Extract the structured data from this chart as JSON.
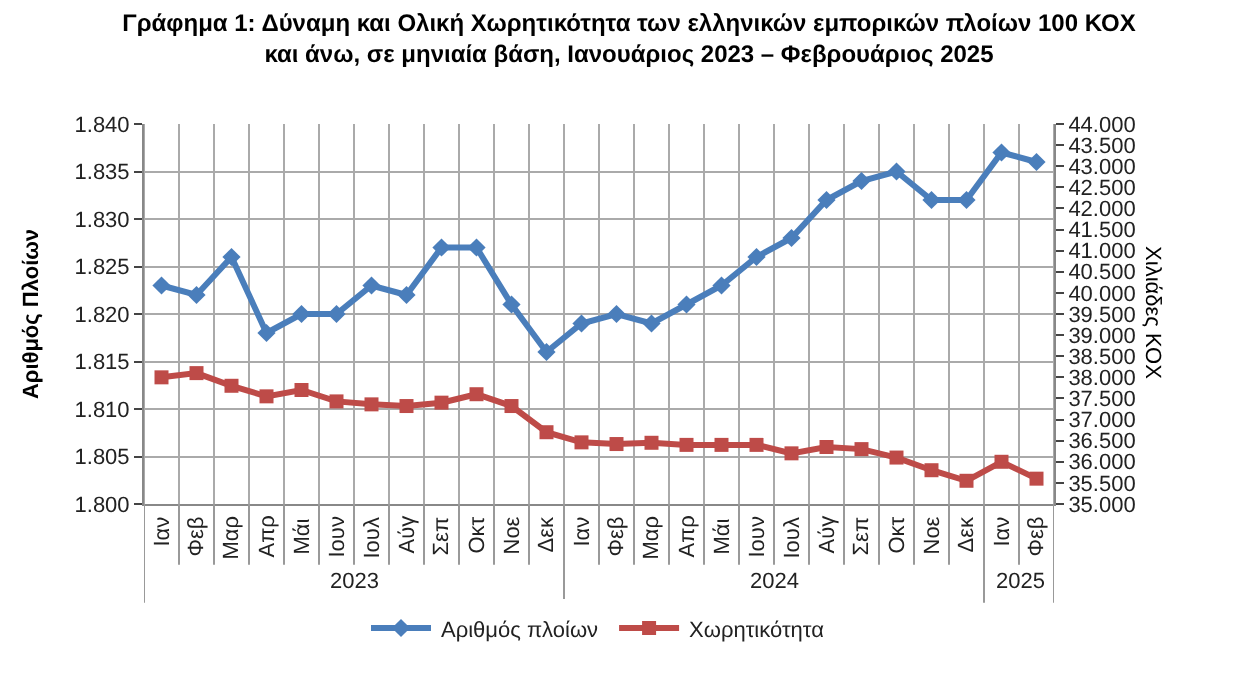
{
  "chart_data": {
    "type": "line",
    "title": "Γράφημα 1: Δύναμη και Ολική Χωρητικότητα των ελληνικών εμπορικών πλοίων 100 ΚΟΧ\nκαι άνω, σε μηνιαία βάση, Ιανουάριος 2023 – Φεβρουάριος 2025",
    "ylabel": "Αριθμός Πλοίων",
    "y2label": "Χιλιάδες ΚΟΧ",
    "categories": [
      "Ιαν",
      "Φεβ",
      "Μαρ",
      "Απρ",
      "Μάι",
      "Ιουν",
      "Ιουλ",
      "Αύγ",
      "Σεπ",
      "Οκτ",
      "Νοε",
      "Δεκ",
      "Ιαν",
      "Φεβ",
      "Μαρ",
      "Απρ",
      "Μάι",
      "Ιουν",
      "Ιουλ",
      "Αύγ",
      "Σεπ",
      "Οκτ",
      "Νοε",
      "Δεκ",
      "Ιαν",
      "Φεβ"
    ],
    "series": [
      {
        "name": "Αριθμός πλοίων",
        "color": "#4a7ebb",
        "marker": "diamond",
        "values": [
          1.823,
          1.822,
          1.826,
          1.818,
          1.82,
          1.82,
          1.823,
          1.822,
          1.827,
          1.827,
          1.821,
          1.816,
          1.819,
          1.82,
          1.819,
          1.821,
          1.823,
          1.826,
          1.828,
          1.832,
          1.834,
          1.835,
          1.832,
          1.832,
          1.837,
          1.836
        ]
      },
      {
        "name": "Χωρητικότητα",
        "color": "#be4b48",
        "marker": "square",
        "axis": "y2",
        "values": [
          38000,
          38100,
          37800,
          37550,
          37700,
          37430,
          37360,
          37320,
          37400,
          37600,
          37320,
          36700,
          36460,
          36420,
          36450,
          36400,
          36400,
          36400,
          36200,
          36350,
          36300,
          36100,
          35800,
          35550,
          36000,
          35600
        ]
      }
    ],
    "ylim": [
      1.8,
      1.84
    ],
    "yticks": [
      {
        "value": 1.8,
        "label": "1.800"
      },
      {
        "value": 1.805,
        "label": "1.805"
      },
      {
        "value": 1.81,
        "label": "1.810"
      },
      {
        "value": 1.815,
        "label": "1.815"
      },
      {
        "value": 1.82,
        "label": "1.820"
      },
      {
        "value": 1.825,
        "label": "1.825"
      },
      {
        "value": 1.83,
        "label": "1.830"
      },
      {
        "value": 1.835,
        "label": "1.835"
      },
      {
        "value": 1.84,
        "label": "1.840"
      }
    ],
    "y2lim": [
      35000,
      44000
    ],
    "y2ticks": [
      {
        "value": 35000,
        "label": "35.000"
      },
      {
        "value": 35500,
        "label": "35.500"
      },
      {
        "value": 36000,
        "label": "36.000"
      },
      {
        "value": 36500,
        "label": "36.500"
      },
      {
        "value": 37000,
        "label": "37.000"
      },
      {
        "value": 37500,
        "label": "37.500"
      },
      {
        "value": 38000,
        "label": "38.000"
      },
      {
        "value": 38500,
        "label": "38.500"
      },
      {
        "value": 39000,
        "label": "39.000"
      },
      {
        "value": 39500,
        "label": "39.500"
      },
      {
        "value": 40000,
        "label": "40.000"
      },
      {
        "value": 40500,
        "label": "40.500"
      },
      {
        "value": 41000,
        "label": "41.000"
      },
      {
        "value": 41500,
        "label": "41.500"
      },
      {
        "value": 42000,
        "label": "42.000"
      },
      {
        "value": 42500,
        "label": "42.500"
      },
      {
        "value": 43000,
        "label": "43.000"
      },
      {
        "value": 43500,
        "label": "43.500"
      },
      {
        "value": 44000,
        "label": "44.000"
      }
    ],
    "annotations": [
      "2023",
      "2024",
      "2025"
    ],
    "grid": true,
    "legend": "bottom",
    "line_style": "solid"
  }
}
